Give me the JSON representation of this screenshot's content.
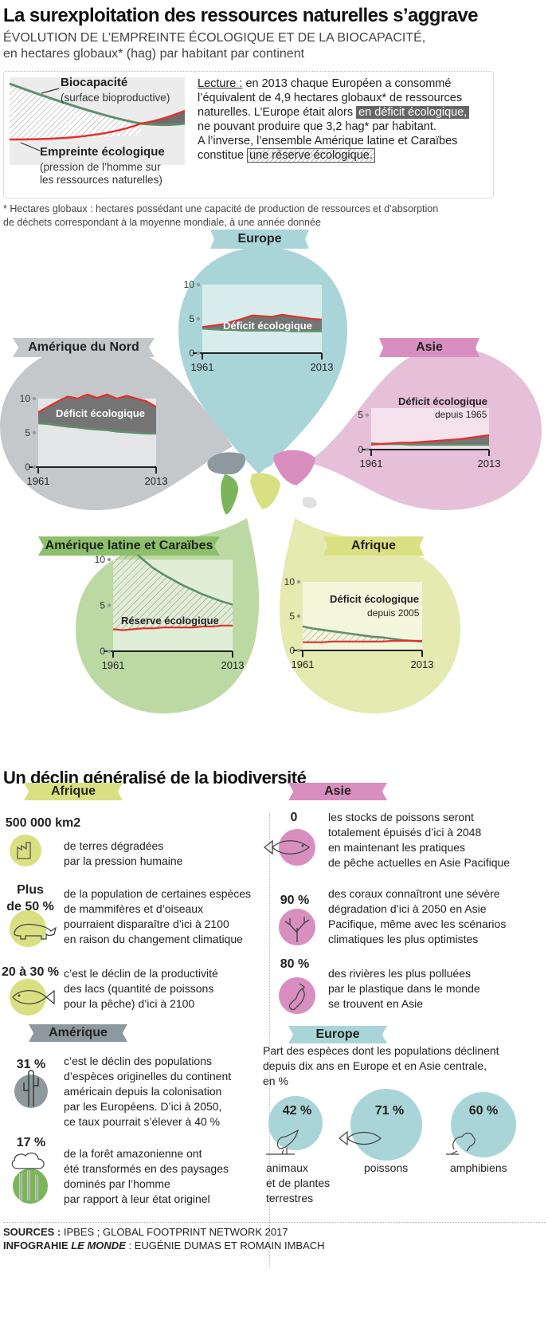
{
  "title": "La surexploitation des ressources naturelles s’aggrave",
  "subtitle1": "ÉVOLUTION DE L’EMPREINTE ÉCOLOGIQUE ET DE LA BIOCAPACITÉ,",
  "subtitle2": "en hectares globaux* (hag) par habitant par continent",
  "legend": {
    "bio_label": "Biocapacité",
    "bio_sub": "(surface bioproductive)",
    "foot_label": "Empreinte écologique",
    "foot_sub1": "(pression de l’homme sur",
    "foot_sub2": "les ressources naturelles)",
    "reading": {
      "l1_head": "Lecture :",
      "l1_rest": " en 2013 chaque Européen a consommé",
      "l2": "l’équivalent de 4,9 hectares globaux* de ressources",
      "l3_a": "naturelles. L’Europe était alors ",
      "l3_hl": "en déficit écologique,",
      "l4": "ne pouvant produire que 3,2 hag* par habitant.",
      "l5": "A l’inverse, l’ensemble Amérique latine et Caraïbes",
      "l6_a": "constitue ",
      "l6_hl": "une réserve écologique."
    }
  },
  "footnote1": "* Hectares globaux : hectares possédant une capacité de production de ressources et d’absorption",
  "footnote2": "de déchets correspondant à la moyenne mondiale, à une année donnée",
  "colors": {
    "europe": "#a9d5d8",
    "asie": "#e6c0d8",
    "amnord": "#c5c8ca",
    "amlat": "#bcd9a4",
    "afrique": "#e4eab0",
    "footprint": "#e4302a",
    "biocap": "#5f8f6d",
    "deficit": "#6e6e6e"
  },
  "chart_data": [
    {
      "type": "area",
      "region": "Europe",
      "x_start": "1961",
      "x_end": "2013",
      "yticks": [
        "0",
        "5",
        "10"
      ],
      "ylim": [
        0,
        10
      ],
      "series": [
        {
          "name": "Empreinte écologique",
          "values": [
            3.8,
            4.0,
            4.2,
            4.6,
            5.0,
            5.5,
            5.4,
            5.3,
            5.6,
            5.4,
            5.2,
            5.0,
            4.9
          ]
        },
        {
          "name": "Biocapacité",
          "values": [
            3.6,
            3.5,
            3.4,
            3.4,
            3.3,
            3.3,
            3.3,
            3.3,
            3.3,
            3.2,
            3.2,
            3.2,
            3.2
          ]
        }
      ],
      "annotation": "Déficit écologique",
      "annotation_sub": ""
    },
    {
      "type": "area",
      "region": "Amérique du Nord",
      "x_start": "1961",
      "x_end": "2013",
      "yticks": [
        "0",
        "5",
        "10"
      ],
      "ylim": [
        0,
        10
      ],
      "series": [
        {
          "name": "Empreinte écologique",
          "values": [
            8.0,
            8.8,
            9.6,
            10.3,
            10.0,
            10.6,
            10.1,
            10.6,
            10.0,
            10.4,
            10.0,
            9.6,
            8.8
          ]
        },
        {
          "name": "Biocapacité",
          "values": [
            6.4,
            6.3,
            6.1,
            5.9,
            5.8,
            5.6,
            5.5,
            5.4,
            5.2,
            5.1,
            5.0,
            4.9,
            4.9
          ]
        }
      ],
      "annotation": "Déficit écologique",
      "annotation_sub": ""
    },
    {
      "type": "area",
      "region": "Asie",
      "x_start": "1961",
      "x_end": "2013",
      "yticks": [
        "0",
        "5"
      ],
      "ylim": [
        0,
        6
      ],
      "series": [
        {
          "name": "Empreinte écologique",
          "values": [
            0.7,
            0.8,
            0.9,
            1.0,
            1.0,
            1.1,
            1.2,
            1.3,
            1.4,
            1.5,
            1.7,
            1.9,
            2.1
          ]
        },
        {
          "name": "Biocapacité",
          "values": [
            0.9,
            0.8,
            0.8,
            0.8,
            0.7,
            0.7,
            0.7,
            0.7,
            0.7,
            0.7,
            0.7,
            0.7,
            0.7
          ]
        }
      ],
      "annotation": "Déficit écologique",
      "annotation_sub": "depuis 1965"
    },
    {
      "type": "area",
      "region": "Amérique latine et Caraïbes",
      "x_start": "1961",
      "x_end": "2013",
      "yticks": [
        "0",
        "5",
        "10"
      ],
      "ylim": [
        0,
        10
      ],
      "series": [
        {
          "name": "Empreinte écologique",
          "values": [
            2.4,
            2.3,
            2.4,
            2.5,
            2.5,
            2.6,
            2.6,
            2.6,
            2.6,
            2.7,
            2.7,
            2.8,
            2.8
          ]
        },
        {
          "name": "Biocapacité",
          "values": [
            13.5,
            12.2,
            11.0,
            10.0,
            9.1,
            8.4,
            7.8,
            7.2,
            6.7,
            6.2,
            5.8,
            5.4,
            5.1
          ]
        }
      ],
      "annotation": "Réserve écologique",
      "annotation_sub": ""
    },
    {
      "type": "area",
      "region": "Afrique",
      "x_start": "1961",
      "x_end": "2013",
      "yticks": [
        "0",
        "5",
        "10"
      ],
      "ylim": [
        0,
        10
      ],
      "series": [
        {
          "name": "Empreinte écologique",
          "values": [
            1.2,
            1.2,
            1.2,
            1.3,
            1.3,
            1.3,
            1.3,
            1.3,
            1.3,
            1.4,
            1.4,
            1.4,
            1.4
          ]
        },
        {
          "name": "Biocapacité",
          "values": [
            3.5,
            3.2,
            3.0,
            2.8,
            2.6,
            2.4,
            2.2,
            2.0,
            1.9,
            1.7,
            1.5,
            1.4,
            1.3
          ]
        }
      ],
      "annotation": "Déficit écologique",
      "annotation_sub": "depuis 2005"
    }
  ],
  "bio_title": "Un déclin généralisé de la biodiversité",
  "bio": {
    "afrique": {
      "label": "Afrique",
      "items": [
        {
          "stat": "500 000 km2",
          "lines": [
            "de terres dégradées",
            "par la pression humaine"
          ]
        },
        {
          "stat1": "Plus",
          "stat2": "de 50 %",
          "lines": [
            "de la population de certaines espèces",
            "de mammifères et d’oiseaux",
            "pourraient disparaître d’ici à 2100",
            "en raison du changement climatique"
          ]
        },
        {
          "stat": "20 à 30 %",
          "lines": [
            "c’est le déclin de la productivité",
            "des lacs (quantité de poissons",
            "pour la pêche)  d’ici à 2100"
          ]
        }
      ]
    },
    "amerique": {
      "label": "Amérique",
      "items": [
        {
          "stat": "31 %",
          "lines": [
            "c’est le déclin des populations",
            "d’espèces originelles du continent",
            "américain depuis la colonisation",
            "par les Européens. D’ici à 2050,",
            "ce taux pourrait s’élever à 40 %"
          ]
        },
        {
          "stat": "17 %",
          "lines": [
            "de la forêt amazonienne ont",
            "été  transformés en des paysages",
            "dominés par l’homme",
            "par rapport à leur état originel"
          ]
        }
      ]
    },
    "asie": {
      "label": "Asie",
      "items": [
        {
          "stat": "0",
          "lines": [
            "les stocks de poissons seront",
            "totalement épuisés d’ici à 2048",
            "en maintenant les pratiques",
            "de pêche actuelles en Asie Pacifique"
          ]
        },
        {
          "stat": "90 %",
          "lines": [
            "des coraux connaîtront une sévère",
            "dégradation  d’ici à 2050 en Asie",
            "Pacifique, même avec les scénarios",
            "climatiques les plus optimistes"
          ]
        },
        {
          "stat": "80 %",
          "lines": [
            "des rivières les plus polluées",
            "par le plastique dans le monde",
            "se trouvent en Asie"
          ]
        }
      ]
    },
    "europe": {
      "label": "Europe",
      "intro": [
        "Part des espèces dont les populations déclinent",
        "depuis dix ans en Europe et en Asie centrale,",
        "en %"
      ],
      "items": [
        {
          "pct": "42 %",
          "value": 42,
          "label_lines": [
            "animaux",
            "et de plantes",
            "terrestres"
          ]
        },
        {
          "pct": "71 %",
          "value": 71,
          "label_lines": [
            "poissons"
          ]
        },
        {
          "pct": "60 %",
          "value": 60,
          "label_lines": [
            "amphibiens"
          ]
        }
      ]
    }
  },
  "sources_head": "SOURCES :",
  "sources": " IPBES ; GLOBAL FOOTPRINT NETWORK 2017",
  "credit_head": "INFOGRAHIE ",
  "credit_paper": "LE MONDE",
  "credit_rest": " : EUGÉNIE DUMAS ET ROMAIN IMBACH"
}
